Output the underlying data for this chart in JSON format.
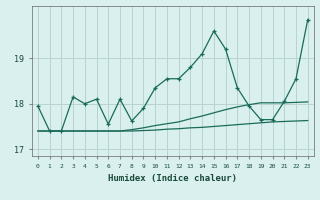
{
  "xlabel": "Humidex (Indice chaleur)",
  "bg_color": "#d9f0ee",
  "grid_color": "#b8d4d0",
  "line_color": "#1a6b5a",
  "x_values": [
    0,
    1,
    2,
    3,
    4,
    5,
    6,
    7,
    8,
    9,
    10,
    11,
    12,
    13,
    14,
    15,
    16,
    17,
    18,
    19,
    20,
    21,
    22,
    23
  ],
  "series1": [
    17.95,
    17.4,
    17.4,
    18.15,
    18.0,
    18.1,
    17.55,
    18.1,
    17.62,
    17.9,
    18.35,
    18.55,
    18.55,
    18.8,
    19.1,
    19.6,
    19.2,
    18.35,
    17.95,
    17.65,
    17.65,
    18.05,
    18.55,
    19.85
  ],
  "series2": [
    17.4,
    17.4,
    17.4,
    17.4,
    17.4,
    17.4,
    17.4,
    17.4,
    17.4,
    17.41,
    17.42,
    17.44,
    17.45,
    17.47,
    17.48,
    17.5,
    17.52,
    17.54,
    17.56,
    17.58,
    17.6,
    17.61,
    17.62,
    17.63
  ],
  "series3": [
    17.4,
    17.4,
    17.4,
    17.4,
    17.4,
    17.4,
    17.4,
    17.4,
    17.43,
    17.47,
    17.52,
    17.56,
    17.6,
    17.67,
    17.73,
    17.8,
    17.87,
    17.93,
    17.98,
    18.02,
    18.02,
    18.02,
    18.03,
    18.04
  ],
  "yticks": [
    17,
    18,
    19
  ],
  "ylim": [
    16.85,
    20.15
  ],
  "xlim": [
    -0.5,
    23.5
  ]
}
